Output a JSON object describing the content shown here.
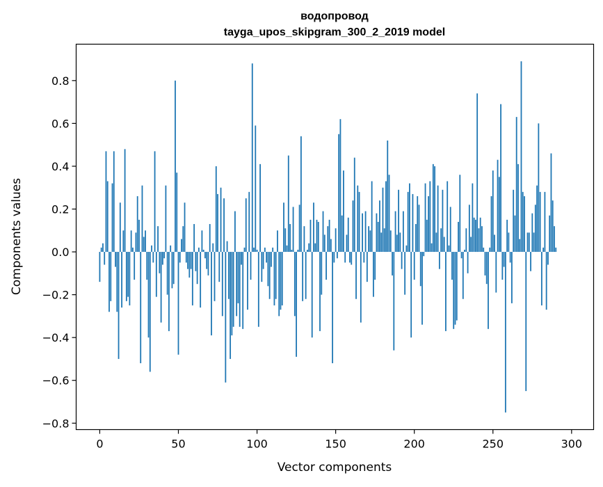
{
  "chart_data": {
    "type": "bar",
    "title_line1": "водопровод",
    "title_line2": "tayga_upos_skipgram_300_2_2019 model",
    "xlabel": "Vector components",
    "ylabel": "Components values",
    "xlim": [
      -15,
      314
    ],
    "ylim": [
      -0.83,
      0.97
    ],
    "xticks": [
      0,
      50,
      100,
      150,
      200,
      250,
      300
    ],
    "yticks": [
      -0.8,
      -0.6,
      -0.4,
      -0.2,
      0.0,
      0.2,
      0.4,
      0.6,
      0.8
    ],
    "ytick_labels": [
      "−0.8",
      "−0.6",
      "−0.4",
      "−0.2",
      "0.0",
      "0.2",
      "0.4",
      "0.6",
      "0.8"
    ],
    "color": "#1f77b4",
    "values": [
      -0.14,
      0.02,
      0.04,
      -0.06,
      0.47,
      0.33,
      -0.28,
      -0.23,
      0.32,
      0.47,
      -0.07,
      -0.28,
      -0.5,
      0.23,
      -0.26,
      0.1,
      0.48,
      -0.23,
      -0.21,
      -0.25,
      0.1,
      0.02,
      -0.13,
      0.09,
      0.26,
      0.15,
      -0.52,
      0.31,
      0.07,
      0.1,
      -0.13,
      -0.4,
      -0.56,
      0.03,
      -0.05,
      0.47,
      -0.21,
      0.12,
      -0.1,
      -0.33,
      -0.06,
      -0.03,
      0.31,
      -0.2,
      -0.37,
      0.03,
      -0.17,
      -0.15,
      0.8,
      0.37,
      -0.48,
      -0.05,
      0.06,
      0.12,
      0.23,
      -0.05,
      -0.08,
      -0.12,
      -0.08,
      -0.25,
      0.13,
      -0.09,
      -0.15,
      0.02,
      -0.26,
      0.1,
      0.01,
      -0.03,
      -0.08,
      -0.11,
      0.13,
      -0.39,
      0.04,
      -0.23,
      0.4,
      0.27,
      -0.14,
      0.3,
      -0.3,
      0.25,
      -0.61,
      0.05,
      -0.22,
      -0.5,
      -0.39,
      -0.35,
      0.19,
      -0.3,
      -0.24,
      -0.35,
      -0.06,
      -0.36,
      0.02,
      0.25,
      -0.27,
      0.28,
      -0.13,
      0.88,
      0.02,
      0.59,
      0.01,
      -0.35,
      0.41,
      -0.14,
      -0.08,
      0.02,
      -0.05,
      -0.16,
      -0.22,
      -0.07,
      0.02,
      -0.25,
      -0.22,
      0.1,
      -0.3,
      -0.27,
      -0.25,
      0.23,
      0.11,
      0.03,
      0.45,
      0.13,
      0.01,
      0.21,
      -0.3,
      -0.49,
      0.01,
      0.22,
      0.54,
      -0.23,
      0.12,
      -0.22,
      0.01,
      0.04,
      0.15,
      -0.4,
      0.23,
      0.04,
      0.15,
      0.14,
      -0.37,
      -0.2,
      0.19,
      0.08,
      -0.13,
      0.12,
      0.15,
      0.06,
      -0.52,
      -0.05,
      0.11,
      -0.03,
      0.55,
      0.62,
      0.17,
      0.38,
      -0.05,
      0.08,
      0.16,
      -0.05,
      -0.06,
      0.24,
      0.44,
      -0.22,
      0.31,
      0.28,
      -0.33,
      0.18,
      -0.05,
      0.19,
      -0.14,
      0.12,
      0.1,
      0.33,
      -0.21,
      -0.13,
      0.18,
      0.14,
      0.24,
      0.09,
      0.3,
      0.11,
      0.33,
      0.52,
      0.36,
      0.1,
      -0.11,
      -0.46,
      0.19,
      0.08,
      0.29,
      0.09,
      -0.08,
      0.19,
      -0.2,
      0.03,
      0.28,
      0.32,
      -0.4,
      0.27,
      -0.13,
      0.13,
      0.26,
      0.22,
      -0.16,
      -0.34,
      -0.02,
      0.32,
      0.15,
      0.26,
      0.33,
      0.04,
      0.41,
      0.4,
      0.09,
      0.31,
      -0.08,
      0.11,
      0.29,
      0.07,
      -0.37,
      0.33,
      0.03,
      0.21,
      -0.13,
      -0.36,
      -0.34,
      -0.32,
      0.14,
      0.36,
      -0.03,
      -0.22,
      0.01,
      0.11,
      -0.1,
      0.22,
      0.07,
      0.32,
      0.16,
      0.15,
      0.74,
      0.11,
      0.16,
      0.12,
      0.02,
      -0.11,
      -0.15,
      -0.36,
      0.02,
      0.26,
      0.38,
      0.08,
      -0.19,
      0.43,
      0.35,
      0.69,
      -0.13,
      -0.07,
      -0.75,
      0.15,
      0.09,
      -0.05,
      -0.24,
      0.29,
      0.17,
      0.63,
      0.41,
      0.06,
      0.89,
      0.28,
      0.26,
      -0.65,
      0.09,
      0.09,
      -0.09,
      0.18,
      0.09,
      0.22,
      0.31,
      0.6,
      0.28,
      -0.25,
      0.02,
      0.28,
      -0.27,
      -0.06,
      0.17,
      0.46,
      0.24,
      0.12,
      0.02
    ]
  }
}
